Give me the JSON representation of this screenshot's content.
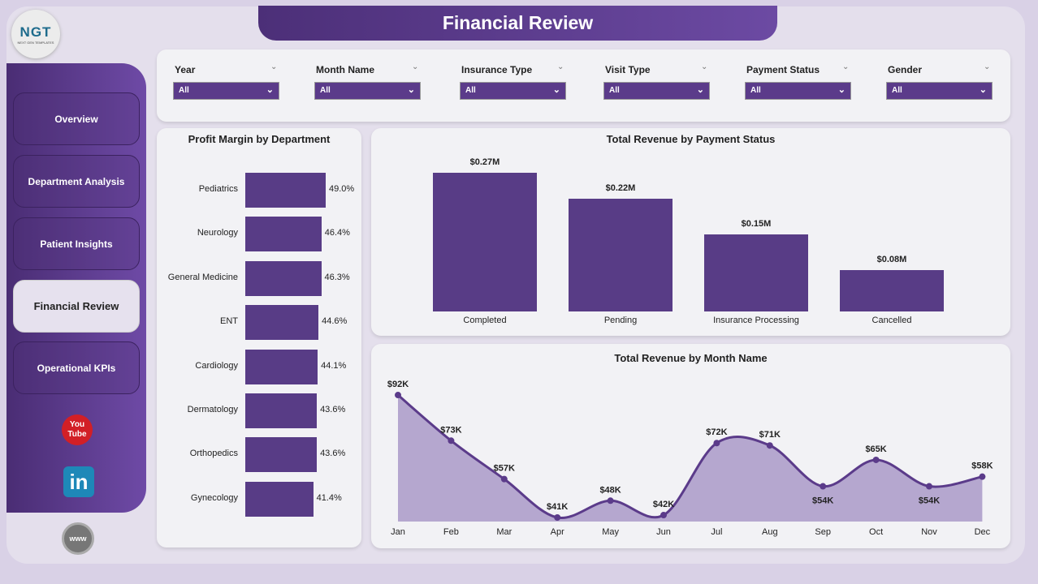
{
  "title": "Financial Review",
  "logo": {
    "text": "NGT",
    "sub": "NEXT GEN TEMPLATES"
  },
  "nav": [
    {
      "label": "Overview"
    },
    {
      "label": "Department Analysis"
    },
    {
      "label": "Patient Insights"
    },
    {
      "label": "Financial Review",
      "active": true
    },
    {
      "label": "Operational KPIs"
    }
  ],
  "social": [
    "youtube-icon",
    "linkedin-icon",
    "website-icon"
  ],
  "filters": [
    {
      "label": "Year",
      "value": "All"
    },
    {
      "label": "Month Name",
      "value": "All"
    },
    {
      "label": "Insurance Type",
      "value": "All"
    },
    {
      "label": "Visit Type",
      "value": "All"
    },
    {
      "label": "Payment Status",
      "value": "All"
    },
    {
      "label": "Gender",
      "value": "All"
    }
  ],
  "colors": {
    "primary": "#583c86",
    "area": "#b5a7cf",
    "line": "#5b3b8a"
  },
  "chart_data": [
    {
      "type": "bar",
      "orientation": "horizontal",
      "title": "Profit Margin by Department",
      "categories": [
        "Pediatrics",
        "Neurology",
        "General Medicine",
        "ENT",
        "Cardiology",
        "Dermatology",
        "Orthopedics",
        "Gynecology"
      ],
      "values": [
        49.0,
        46.4,
        46.3,
        44.6,
        44.1,
        43.6,
        43.6,
        41.4
      ],
      "labels": [
        "49.0%",
        "46.4%",
        "46.3%",
        "44.6%",
        "44.1%",
        "43.6%",
        "43.6%",
        "41.4%"
      ]
    },
    {
      "type": "bar",
      "title": "Total Revenue by Payment Status",
      "categories": [
        "Completed",
        "Pending",
        "Insurance Processing",
        "Cancelled"
      ],
      "values": [
        0.27,
        0.22,
        0.15,
        0.08
      ],
      "labels": [
        "$0.27M",
        "$0.22M",
        "$0.15M",
        "$0.08M"
      ],
      "unit": "M"
    },
    {
      "type": "area",
      "title": "Total Revenue by Month Name",
      "categories": [
        "Jan",
        "Feb",
        "Mar",
        "Apr",
        "May",
        "Jun",
        "Jul",
        "Aug",
        "Sep",
        "Oct",
        "Nov",
        "Dec"
      ],
      "values": [
        92,
        73,
        57,
        41,
        48,
        42,
        72,
        71,
        54,
        65,
        54,
        58
      ],
      "labels": [
        "$92K",
        "$73K",
        "$57K",
        "$41K",
        "$48K",
        "$42K",
        "$72K",
        "$71K",
        "$54K",
        "$65K",
        "$54K",
        "$58K"
      ],
      "unit": "K"
    }
  ]
}
